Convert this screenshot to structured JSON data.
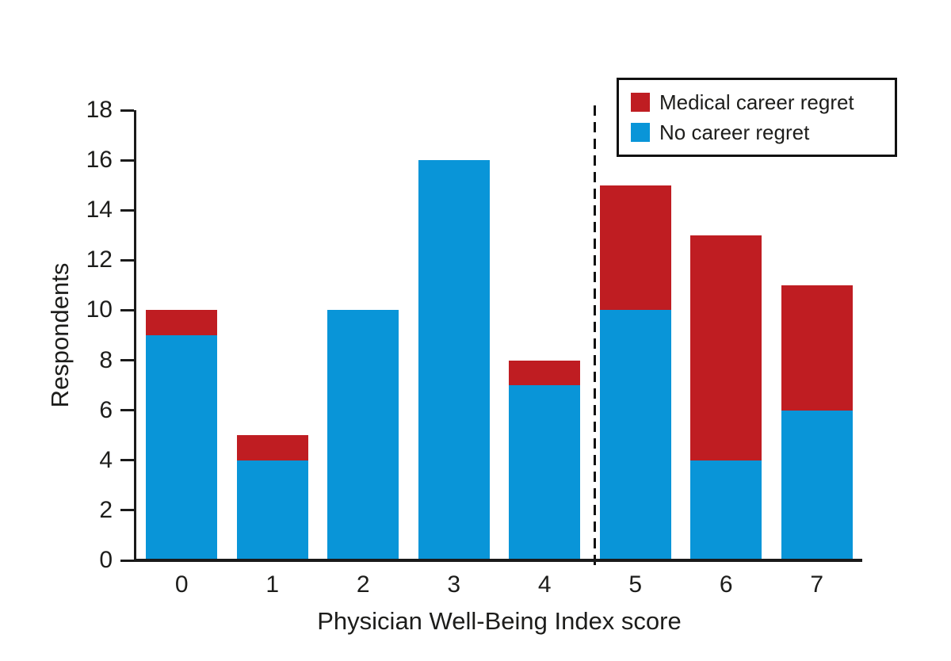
{
  "figure": {
    "legend": [
      {
        "label": "Medical career regret",
        "color": "#bf1d22"
      },
      {
        "label": "No career regret",
        "color": "#0995d8"
      }
    ]
  },
  "colors": {
    "regret_red": "#bf1d22",
    "no_regret_blue": "#0995d8",
    "axis_black": "#1a1a1a"
  },
  "chart_data": {
    "type": "bar",
    "stacked": true,
    "title": "",
    "categories": [
      "0",
      "1",
      "2",
      "3",
      "4",
      "5",
      "6",
      "7"
    ],
    "series": [
      {
        "name": "No career regret",
        "key": "no-career-regret",
        "color": "#0995d8",
        "values": [
          9,
          4,
          10,
          16,
          7,
          10,
          4,
          6
        ]
      },
      {
        "name": "Medical career regret",
        "key": "medical-career-regret",
        "color": "#bf1d22",
        "values": [
          1,
          1,
          0,
          0,
          1,
          5,
          9,
          5
        ]
      }
    ],
    "totals": [
      10,
      5,
      10,
      16,
      8,
      15,
      13,
      11
    ],
    "xlabel": "Physician Well-Being Index score",
    "ylabel": "Respondents",
    "ylim": [
      0,
      18
    ],
    "yticks": [
      0,
      2,
      4,
      6,
      8,
      10,
      12,
      14,
      16,
      18
    ],
    "grid": false,
    "legend_position": "top-right",
    "annotations": [
      {
        "type": "dashed-vertical-line",
        "between_categories": [
          "4",
          "5"
        ]
      }
    ]
  }
}
